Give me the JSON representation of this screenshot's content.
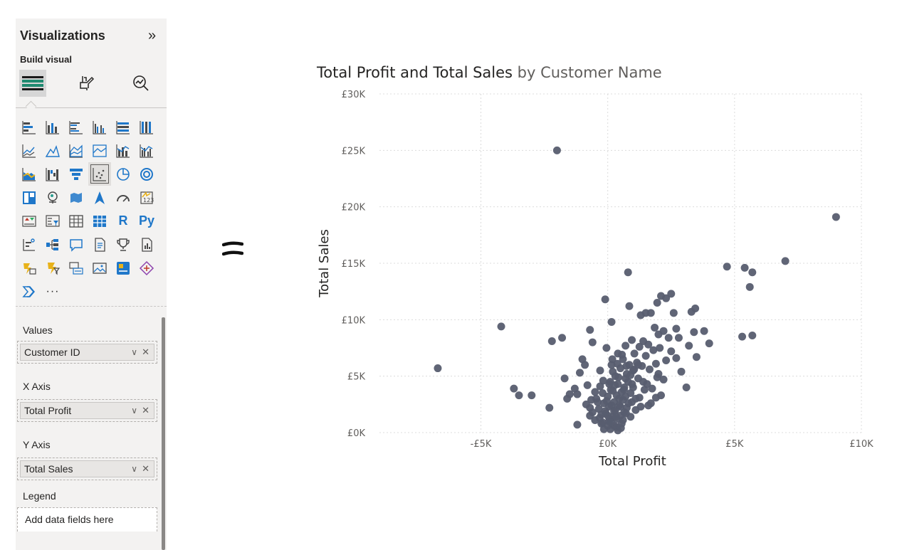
{
  "pane": {
    "title": "Visualizations",
    "collapse_icon": "double-chevron-right-icon",
    "build_visual_label": "Build visual",
    "modes": [
      "build-visual-icon",
      "format-visual-icon",
      "analytics-icon"
    ],
    "viz_icons": [
      "stacked-bar-chart-icon",
      "stacked-column-chart-icon",
      "clustered-bar-chart-icon",
      "clustered-column-chart-icon",
      "100-stacked-bar-chart-icon",
      "100-stacked-column-chart-icon",
      "line-chart-icon",
      "area-chart-icon",
      "stacked-area-chart-icon",
      "100-stacked-area-chart-icon",
      "line-and-stacked-column-chart-icon",
      "line-and-clustered-column-chart-icon",
      "ribbon-chart-icon",
      "waterfall-chart-icon",
      "funnel-icon",
      "scatter-chart-icon",
      "pie-chart-icon",
      "donut-chart-icon",
      "treemap-icon",
      "map-icon",
      "filled-map-icon",
      "azure-map-icon",
      "gauge-icon",
      "card-icon",
      "kpi-icon",
      "slicer-icon",
      "table-icon",
      "matrix-icon",
      "r-script-visual-icon",
      "python-visual-icon",
      "key-influencers-icon",
      "decomposition-tree-icon",
      "qa-icon",
      "smart-narrative-icon",
      "metrics-trophy-icon",
      "paginated-report-icon",
      "power-apps-icon",
      "power-automate-icon",
      "multi-row-card-icon",
      "image-icon",
      "new-card-icon",
      "diamond-visual-icon",
      "chevron-forward-visual-icon",
      "more-visuals-icon"
    ],
    "r_label": "R",
    "py_label": "Py",
    "more_label": "···",
    "wells": {
      "values": {
        "label": "Values",
        "field": "Customer ID"
      },
      "x_axis": {
        "label": "X Axis",
        "field": "Total Profit"
      },
      "y_axis": {
        "label": "Y Axis",
        "field": "Total Sales"
      },
      "legend": {
        "label": "Legend",
        "placeholder": "Add data fields here"
      }
    }
  },
  "equals_icon": "equals-icon",
  "chart_data": {
    "type": "scatter",
    "title_main": "Total Profit and Total Sales",
    "title_by": "by Customer Name",
    "xlabel": "Total Profit",
    "ylabel": "Total Sales",
    "xlim": [
      -9000,
      10000
    ],
    "ylim": [
      0,
      30000
    ],
    "x_ticks": [
      {
        "v": -5000,
        "label": "-£5K"
      },
      {
        "v": 0,
        "label": "£0K"
      },
      {
        "v": 5000,
        "label": "£5K"
      },
      {
        "v": 10000,
        "label": "£10K"
      }
    ],
    "y_ticks": [
      {
        "v": 0,
        "label": "£0K"
      },
      {
        "v": 5000,
        "label": "£5K"
      },
      {
        "v": 10000,
        "label": "£10K"
      },
      {
        "v": 15000,
        "label": "£15K"
      },
      {
        "v": 20000,
        "label": "£20K"
      },
      {
        "v": 25000,
        "label": "£25K"
      },
      {
        "v": 30000,
        "label": "£30K"
      }
    ],
    "grid": true,
    "point_color": "#575d6f",
    "points": [
      [
        -6700,
        5700
      ],
      [
        -4200,
        9400
      ],
      [
        -3700,
        3900
      ],
      [
        -3500,
        3300
      ],
      [
        -3000,
        3300
      ],
      [
        -2300,
        2200
      ],
      [
        -2200,
        8100
      ],
      [
        -2000,
        25000
      ],
      [
        -1800,
        8400
      ],
      [
        -1700,
        4800
      ],
      [
        -1600,
        3000
      ],
      [
        -1500,
        3400
      ],
      [
        -1300,
        3900
      ],
      [
        -1200,
        3400
      ],
      [
        -1100,
        5300
      ],
      [
        -1000,
        6500
      ],
      [
        -900,
        6000
      ],
      [
        -800,
        4200
      ],
      [
        -700,
        9100
      ],
      [
        -700,
        2200
      ],
      [
        -650,
        2900
      ],
      [
        -600,
        1800
      ],
      [
        -600,
        8000
      ],
      [
        -500,
        3600
      ],
      [
        -450,
        3000
      ],
      [
        -1200,
        700
      ],
      [
        -400,
        2700
      ],
      [
        -350,
        2100
      ],
      [
        -300,
        5500
      ],
      [
        -300,
        4100
      ],
      [
        -250,
        1600
      ],
      [
        -200,
        3500
      ],
      [
        -200,
        900
      ],
      [
        -150,
        2600
      ],
      [
        -100,
        11800
      ],
      [
        -100,
        1900
      ],
      [
        -50,
        7500
      ],
      [
        0,
        3200
      ],
      [
        50,
        2300
      ],
      [
        50,
        1000
      ],
      [
        100,
        4500
      ],
      [
        100,
        300
      ],
      [
        150,
        9800
      ],
      [
        150,
        6000
      ],
      [
        200,
        3700
      ],
      [
        200,
        1400
      ],
      [
        250,
        2700
      ],
      [
        250,
        600
      ],
      [
        300,
        5000
      ],
      [
        300,
        2000
      ],
      [
        350,
        1200
      ],
      [
        350,
        3300
      ],
      [
        400,
        4300
      ],
      [
        400,
        7000
      ],
      [
        400,
        200
      ],
      [
        450,
        2400
      ],
      [
        500,
        5700
      ],
      [
        500,
        1500
      ],
      [
        550,
        3600
      ],
      [
        550,
        800
      ],
      [
        600,
        2900
      ],
      [
        600,
        6500
      ],
      [
        650,
        4000
      ],
      [
        650,
        1800
      ],
      [
        700,
        7700
      ],
      [
        700,
        3200
      ],
      [
        750,
        5200
      ],
      [
        750,
        2200
      ],
      [
        800,
        14200
      ],
      [
        800,
        4500
      ],
      [
        850,
        11200
      ],
      [
        850,
        6000
      ],
      [
        900,
        3500
      ],
      [
        900,
        1400
      ],
      [
        950,
        8200
      ],
      [
        950,
        2700
      ],
      [
        1000,
        5500
      ],
      [
        1000,
        4000
      ],
      [
        1050,
        7000
      ],
      [
        1100,
        3000
      ],
      [
        1150,
        6200
      ],
      [
        1200,
        4800
      ],
      [
        1250,
        7600
      ],
      [
        1300,
        10400
      ],
      [
        1300,
        2300
      ],
      [
        1350,
        5900
      ],
      [
        1400,
        8100
      ],
      [
        1450,
        3800
      ],
      [
        1500,
        10600
      ],
      [
        1500,
        6800
      ],
      [
        1550,
        4300
      ],
      [
        1600,
        7800
      ],
      [
        1650,
        5600
      ],
      [
        1700,
        10600
      ],
      [
        1700,
        2600
      ],
      [
        1800,
        7300
      ],
      [
        1850,
        9300
      ],
      [
        1900,
        6100
      ],
      [
        1950,
        11500
      ],
      [
        1950,
        4900
      ],
      [
        2000,
        8700
      ],
      [
        2050,
        7500
      ],
      [
        2100,
        12100
      ],
      [
        2100,
        3300
      ],
      [
        2200,
        9000
      ],
      [
        2300,
        11900
      ],
      [
        2300,
        6400
      ],
      [
        2400,
        8400
      ],
      [
        2500,
        12300
      ],
      [
        2500,
        7200
      ],
      [
        2600,
        10600
      ],
      [
        2700,
        9200
      ],
      [
        2700,
        6600
      ],
      [
        2800,
        8400
      ],
      [
        2900,
        5400
      ],
      [
        3100,
        4000
      ],
      [
        3200,
        7700
      ],
      [
        3300,
        10700
      ],
      [
        3400,
        8900
      ],
      [
        3450,
        11000
      ],
      [
        3500,
        6700
      ],
      [
        3800,
        9000
      ],
      [
        4000,
        7900
      ],
      [
        4700,
        14700
      ],
      [
        5300,
        8500
      ],
      [
        5400,
        14600
      ],
      [
        5600,
        12900
      ],
      [
        5700,
        14200
      ],
      [
        5700,
        8600
      ],
      [
        7000,
        15200
      ],
      [
        9000,
        19100
      ],
      [
        0,
        600
      ],
      [
        80,
        1200
      ],
      [
        -80,
        1700
      ],
      [
        150,
        2400
      ],
      [
        -150,
        300
      ],
      [
        250,
        1900
      ],
      [
        350,
        500
      ],
      [
        -250,
        800
      ],
      [
        450,
        3000
      ],
      [
        500,
        2300
      ],
      [
        120,
        3800
      ],
      [
        -40,
        2800
      ],
      [
        600,
        1100
      ],
      [
        700,
        4800
      ],
      [
        200,
        5400
      ],
      [
        -180,
        4600
      ],
      [
        420,
        4900
      ],
      [
        900,
        5100
      ],
      [
        1100,
        2000
      ],
      [
        1250,
        3100
      ],
      [
        280,
        4200
      ],
      [
        640,
        3800
      ],
      [
        820,
        2600
      ],
      [
        960,
        4300
      ],
      [
        60,
        4300
      ],
      [
        -320,
        1300
      ],
      [
        180,
        6500
      ],
      [
        380,
        6100
      ],
      [
        560,
        6900
      ],
      [
        740,
        5900
      ],
      [
        1040,
        5600
      ],
      [
        1200,
        6000
      ],
      [
        1400,
        4500
      ],
      [
        1600,
        2400
      ],
      [
        1750,
        3900
      ],
      [
        1900,
        3100
      ],
      [
        2000,
        5200
      ],
      [
        2200,
        4700
      ],
      [
        -500,
        1100
      ],
      [
        -700,
        1500
      ],
      [
        -850,
        2500
      ],
      [
        0,
        1500
      ],
      [
        130,
        900
      ],
      [
        330,
        1400
      ],
      [
        520,
        400
      ],
      [
        720,
        1700
      ]
    ]
  }
}
